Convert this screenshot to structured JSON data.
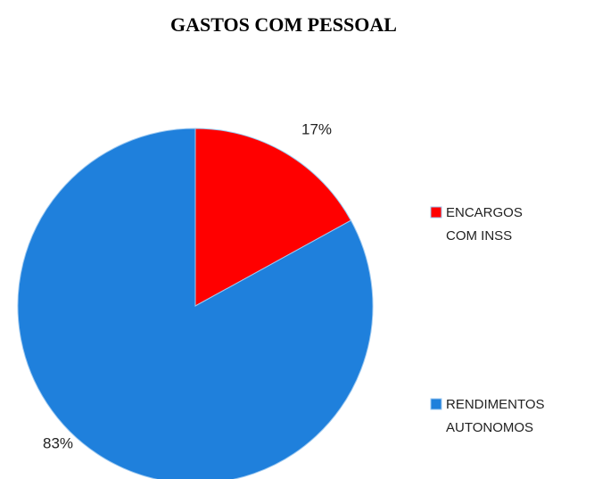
{
  "chart_data": {
    "type": "pie",
    "title": "GASTOS COM PESSOAL",
    "categories": [
      "ENCARGOS COM INSS",
      "RENDIMENTOS AUTONOMOS"
    ],
    "values": [
      17,
      83
    ],
    "value_labels": [
      "17%",
      "83%"
    ],
    "colors": [
      "#ff0000",
      "#1f80dc"
    ],
    "legend": "right"
  }
}
